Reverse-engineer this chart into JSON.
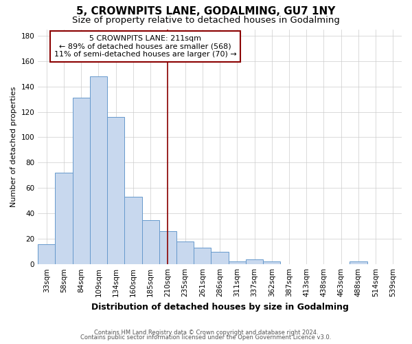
{
  "title": "5, CROWNPITS LANE, GODALMING, GU7 1NY",
  "subtitle": "Size of property relative to detached houses in Godalming",
  "xlabel": "Distribution of detached houses by size in Godalming",
  "ylabel": "Number of detached properties",
  "bar_labels": [
    "33sqm",
    "58sqm",
    "84sqm",
    "109sqm",
    "134sqm",
    "160sqm",
    "185sqm",
    "210sqm",
    "235sqm",
    "261sqm",
    "286sqm",
    "311sqm",
    "337sqm",
    "362sqm",
    "387sqm",
    "413sqm",
    "438sqm",
    "463sqm",
    "488sqm",
    "514sqm",
    "539sqm"
  ],
  "bar_values": [
    16,
    72,
    131,
    148,
    116,
    53,
    35,
    26,
    18,
    13,
    10,
    2,
    4,
    2,
    0,
    0,
    0,
    0,
    2,
    0,
    0
  ],
  "bar_color": "#c8d8ee",
  "bar_edge_color": "#6699cc",
  "vline_index": 7,
  "vline_color": "#8b0000",
  "annotation_box_text": "5 CROWNPITS LANE: 211sqm\n← 89% of detached houses are smaller (568)\n11% of semi-detached houses are larger (70) →",
  "ylim": [
    0,
    185
  ],
  "yticks": [
    0,
    20,
    40,
    60,
    80,
    100,
    120,
    140,
    160,
    180
  ],
  "bg_color": "#ffffff",
  "grid_color": "#cccccc",
  "title_fontsize": 11,
  "subtitle_fontsize": 9.5,
  "xlabel_fontsize": 9,
  "ylabel_fontsize": 8,
  "tick_fontsize": 7.5,
  "ann_fontsize": 8,
  "footer_line1": "Contains HM Land Registry data © Crown copyright and database right 2024.",
  "footer_line2": "Contains public sector information licensed under the Open Government Licence v3.0."
}
